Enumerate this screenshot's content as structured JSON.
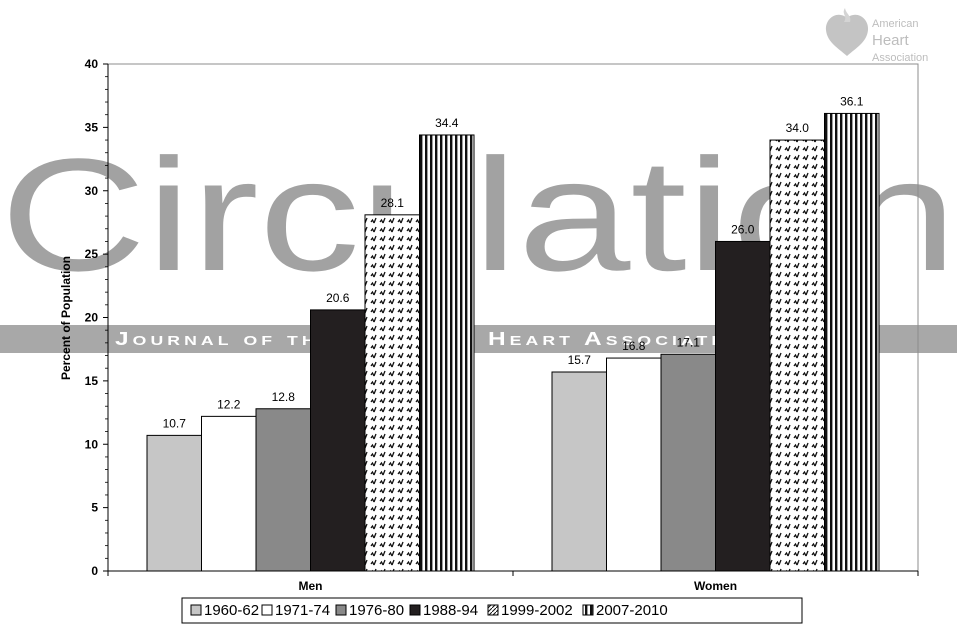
{
  "watermark": {
    "title": "Circulation",
    "subtitle": "Journal of the American Heart Association",
    "logo_lines": [
      "American",
      "Heart",
      "Association"
    ]
  },
  "chart_data": {
    "type": "bar",
    "title": "",
    "xlabel": "",
    "ylabel": "Percent of Population",
    "ylim": [
      0,
      40
    ],
    "yticks": [
      0,
      5,
      10,
      15,
      20,
      25,
      30,
      35,
      40
    ],
    "categories": [
      "Men",
      "Women"
    ],
    "series": [
      {
        "name": "1960-62",
        "values": [
          10.7,
          15.7
        ],
        "labels": [
          "10.7",
          "15.7"
        ],
        "fill": "#c6c6c6",
        "pattern": "solid"
      },
      {
        "name": "1971-74",
        "values": [
          12.2,
          16.8
        ],
        "labels": [
          "12.2",
          "16.8"
        ],
        "fill": "#ffffff",
        "pattern": "solid"
      },
      {
        "name": "1976-80",
        "values": [
          12.8,
          17.1
        ],
        "labels": [
          "12.8",
          "17.1"
        ],
        "fill": "#898989",
        "pattern": "solid"
      },
      {
        "name": "1988-94",
        "values": [
          20.6,
          26.0
        ],
        "labels": [
          "20.6",
          "26.0"
        ],
        "fill": "#231f20",
        "pattern": "solid"
      },
      {
        "name": "1999-2002",
        "values": [
          28.1,
          34.0
        ],
        "labels": [
          "28.1",
          "34.0"
        ],
        "fill": "#ffffff",
        "pattern": "dots"
      },
      {
        "name": "2007-2010",
        "values": [
          34.4,
          36.1
        ],
        "labels": [
          "34.4",
          "36.1"
        ],
        "fill": "#ffffff",
        "pattern": "vstripes"
      }
    ],
    "grid": false,
    "legend_position": "bottom"
  }
}
